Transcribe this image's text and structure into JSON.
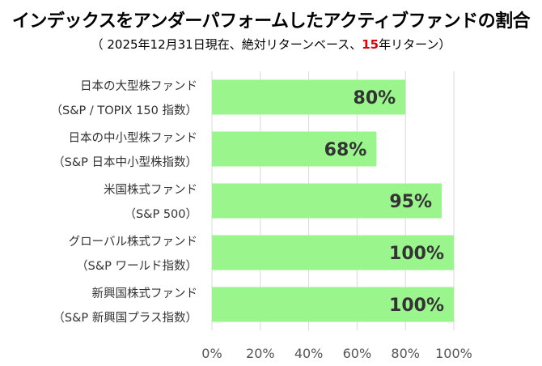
{
  "title": "インデックスをアンダーパフォームしたアクティブファンドの割合",
  "subtitle": {
    "prefix": "（ 2025年12月31日現在、絶対リターンベース、",
    "highlight": "15",
    "suffix": "年リターン）"
  },
  "colors": {
    "bar": "#99f58c",
    "grid": "#d9d9d9",
    "highlight": "#e00000"
  },
  "chart_data": {
    "type": "bar",
    "orientation": "horizontal",
    "categories": [
      [
        "日本の大型株ファンド",
        "（S&P / TOPIX 150 指数）"
      ],
      [
        "日本の中小型株ファンド",
        "（S&P 日本中小型株指数）"
      ],
      [
        "米国株式ファンド",
        "（S&P 500）"
      ],
      [
        "グローバル株式ファンド",
        "（S&P ワールド指数）"
      ],
      [
        "新興国株式ファンド",
        "（S&P 新興国プラス指数）"
      ]
    ],
    "values": [
      80,
      68,
      95,
      100,
      100
    ],
    "value_labels": [
      "80%",
      "68%",
      "95%",
      "100%",
      "100%"
    ],
    "xlim": [
      0,
      100
    ],
    "xticks": [
      "0%",
      "20%",
      "40%",
      "60%",
      "80%",
      "100%"
    ],
    "grid": true,
    "legend": "none"
  }
}
